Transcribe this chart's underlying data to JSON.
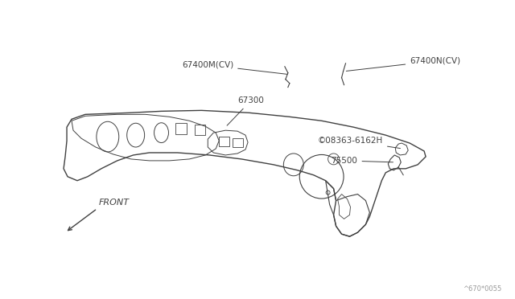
{
  "bg_color": "#ffffff",
  "line_color": "#404040",
  "fig_width": 6.4,
  "fig_height": 3.72,
  "dpi": 100,
  "watermark": "^670*0055",
  "label_67400M": "67400M(CV)",
  "label_67400N": "67400N(CV)",
  "label_67300": "67300",
  "label_08363": "©08363-6162H",
  "label_75500": "75500",
  "label_front": "FRONT"
}
